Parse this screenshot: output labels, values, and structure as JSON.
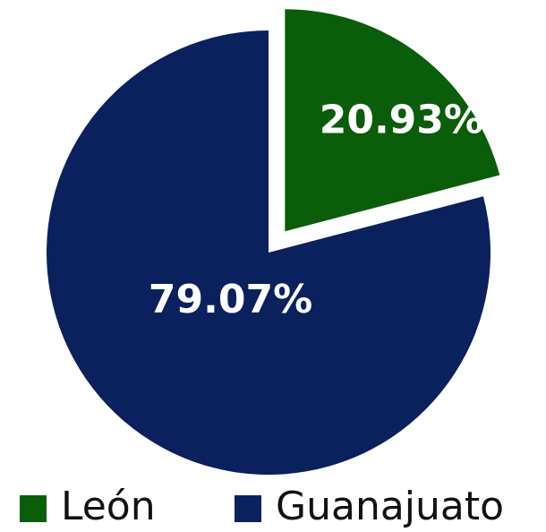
{
  "chart_data": {
    "type": "pie",
    "categories": [
      "León",
      "Guanajuato"
    ],
    "values": [
      20.93,
      79.07
    ],
    "value_labels": [
      "20.93%",
      "79.07%"
    ],
    "colors": [
      "#0a5e0a",
      "#0a215e"
    ],
    "legend": "bottom"
  }
}
